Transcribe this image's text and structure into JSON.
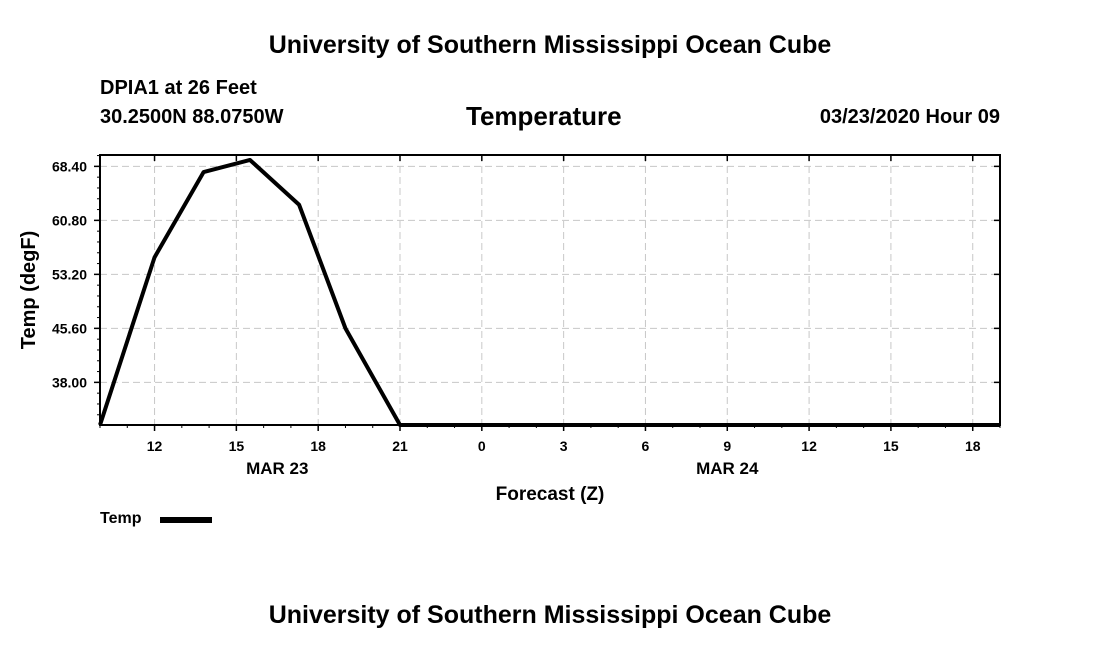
{
  "header": {
    "title": "University of Southern Mississippi Ocean Cube",
    "station": "DPIA1 at 26 Feet",
    "location": "30.2500N 88.0750W",
    "chart_title": "Temperature",
    "timestamp": "03/23/2020 Hour 09"
  },
  "footer": {
    "title": "University of Southern Mississippi Ocean Cube"
  },
  "legend": {
    "label": "Temp"
  },
  "chart_data": {
    "type": "line",
    "title": "Temperature",
    "xlabel": "Forecast (Z)",
    "ylabel": "Temp (degF)",
    "x_unit": "hour (Z)",
    "x_tick_labels": [
      "12",
      "15",
      "18",
      "21",
      "0",
      "3",
      "6",
      "9",
      "12",
      "15",
      "18"
    ],
    "x_tick_hours": [
      12,
      15,
      18,
      21,
      24,
      27,
      30,
      33,
      36,
      39,
      42
    ],
    "date_labels": [
      {
        "label": "MAR 23",
        "hour": 16.5
      },
      {
        "label": "MAR 24",
        "hour": 33
      }
    ],
    "y_tick_labels": [
      "38.00",
      "45.60",
      "53.20",
      "60.80",
      "68.40"
    ],
    "y_ticks": [
      38.0,
      45.6,
      53.2,
      60.8,
      68.4
    ],
    "xlim": [
      10,
      43
    ],
    "ylim": [
      32.0,
      70.0
    ],
    "grid": true,
    "legend_position": "bottom-left",
    "series": [
      {
        "name": "Temp",
        "color": "#000000",
        "x": [
          10,
          12,
          13.8,
          15.5,
          17.3,
          19,
          21,
          43
        ],
        "y": [
          32.0,
          55.6,
          67.6,
          69.3,
          63.0,
          45.6,
          32.0,
          32.0
        ]
      }
    ]
  }
}
